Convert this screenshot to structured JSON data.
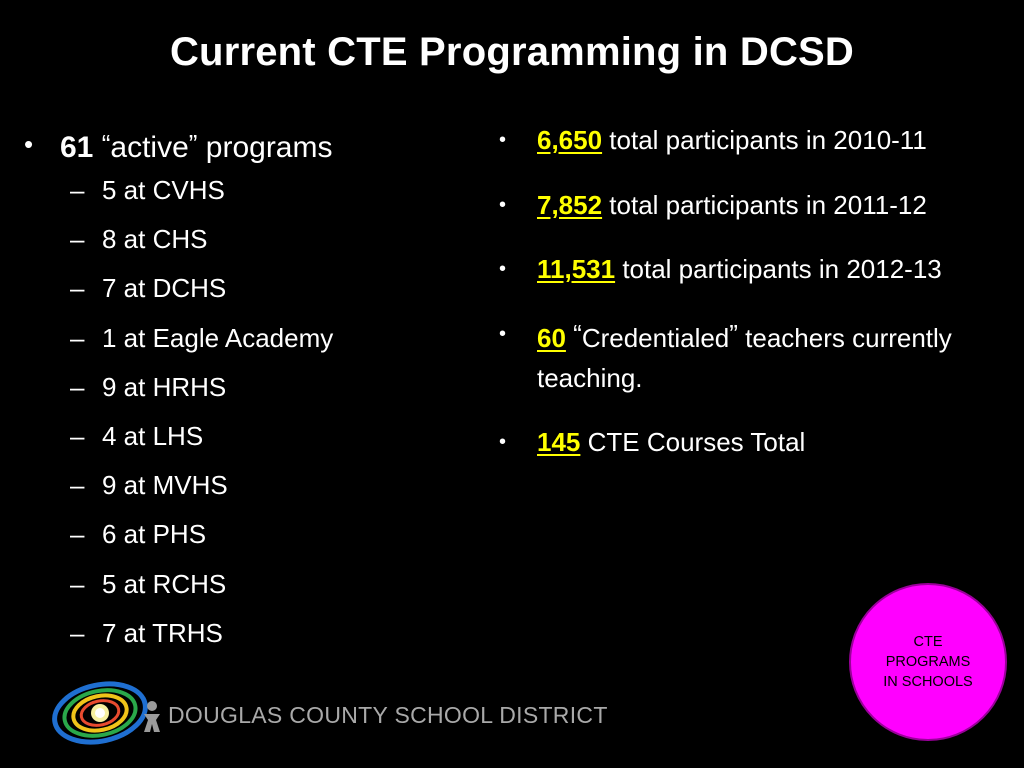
{
  "title": "Current CTE Programming in DCSD",
  "left": {
    "main_count": "61",
    "main_open_quote": "“",
    "main_quoted": "active",
    "main_close_quote": "”",
    "main_suffix": " programs",
    "schools": [
      "5 at CVHS",
      "8 at CHS",
      "7 at DCHS",
      "1 at Eagle Academy",
      "9 at HRHS",
      "4 at LHS",
      "9 at MVHS",
      "6 at PHS",
      "5 at RCHS",
      "7 at TRHS"
    ],
    "dash": "–"
  },
  "right": {
    "items": [
      {
        "value": "6,650",
        "text": " total participants in 2010-11"
      },
      {
        "value": "7,852",
        "text": " total participants in 2011-12"
      },
      {
        "value": "11,531",
        "text": " total participants in 2012-13"
      },
      {
        "value": "60",
        "open_quote": "“",
        "quoted": "Credentialed",
        "close_quote": "”",
        "text": " teachers currently teaching."
      },
      {
        "value": "145",
        "text": " CTE Courses Total"
      }
    ]
  },
  "bullet_char": "•",
  "footer": {
    "org_name": "DOUGLAS COUNTY SCHOOL DISTRICT"
  },
  "badge": {
    "line1": "CTE",
    "line2": "PROGRAMS",
    "line3": "IN SCHOOLS"
  },
  "colors": {
    "background": "#000000",
    "text": "#ffffff",
    "highlight": "#ffff00",
    "badge": "#ff00ff",
    "footer_text": "#a9a9a9"
  }
}
